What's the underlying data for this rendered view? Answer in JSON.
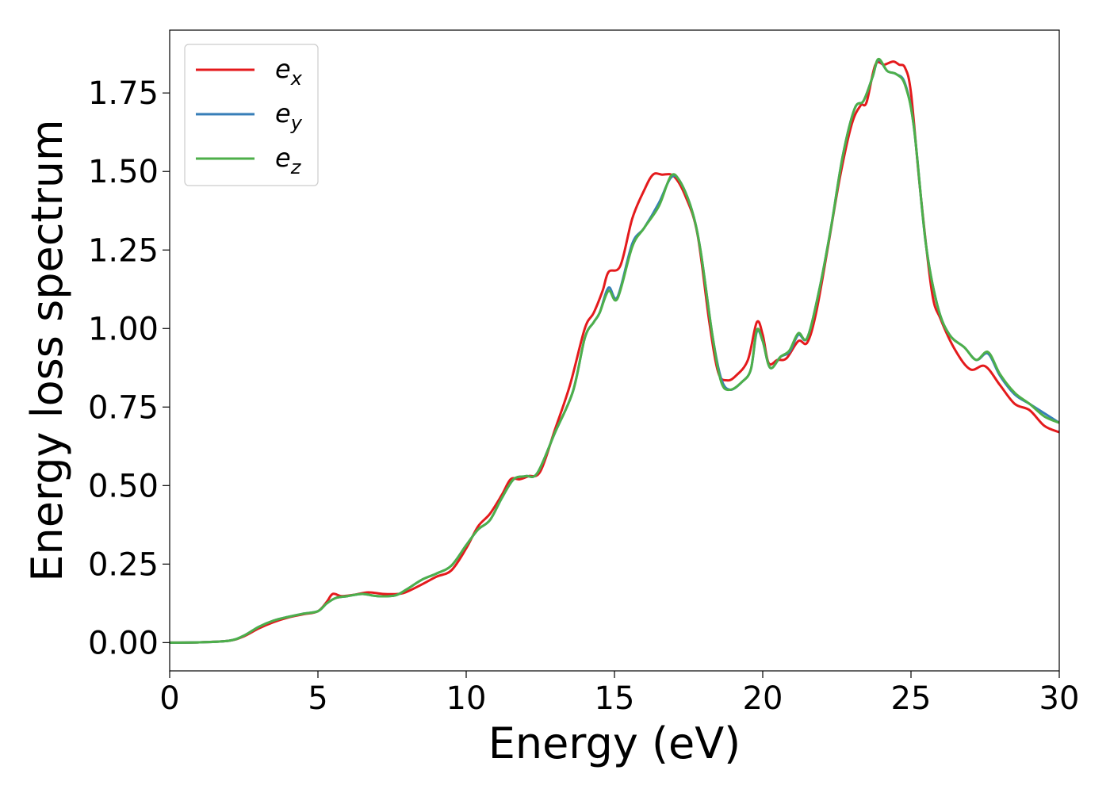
{
  "chart_data": {
    "type": "line",
    "title": "",
    "xlabel": "Energy (eV)",
    "ylabel": "Energy loss spectrum",
    "xlim": [
      0,
      30
    ],
    "ylim": [
      -0.09,
      1.95
    ],
    "xticks": [
      0,
      5,
      10,
      15,
      20,
      25,
      30
    ],
    "xtick_labels": [
      "0",
      "5",
      "10",
      "15",
      "20",
      "25",
      "30"
    ],
    "yticks": [
      0.0,
      0.25,
      0.5,
      0.75,
      1.0,
      1.25,
      1.5,
      1.75
    ],
    "ytick_labels": [
      "0.00",
      "0.25",
      "0.50",
      "0.75",
      "1.00",
      "1.25",
      "1.50",
      "1.75"
    ],
    "grid": false,
    "legend_position": "top-left",
    "series": [
      {
        "name": "e",
        "subscript": "x",
        "color": "#e41a1c",
        "points": [
          [
            0,
            0
          ],
          [
            1,
            0.001
          ],
          [
            2,
            0.006
          ],
          [
            2.5,
            0.02
          ],
          [
            3,
            0.045
          ],
          [
            3.5,
            0.065
          ],
          [
            4,
            0.08
          ],
          [
            4.5,
            0.09
          ],
          [
            5,
            0.1
          ],
          [
            5.3,
            0.13
          ],
          [
            5.5,
            0.155
          ],
          [
            5.8,
            0.148
          ],
          [
            6.2,
            0.152
          ],
          [
            6.7,
            0.16
          ],
          [
            7.2,
            0.155
          ],
          [
            7.7,
            0.155
          ],
          [
            8,
            0.162
          ],
          [
            8.5,
            0.185
          ],
          [
            9,
            0.21
          ],
          [
            9.5,
            0.23
          ],
          [
            10,
            0.3
          ],
          [
            10.4,
            0.37
          ],
          [
            10.8,
            0.41
          ],
          [
            11.2,
            0.47
          ],
          [
            11.5,
            0.52
          ],
          [
            11.8,
            0.52
          ],
          [
            12.1,
            0.53
          ],
          [
            12.5,
            0.545
          ],
          [
            13,
            0.68
          ],
          [
            13.5,
            0.82
          ],
          [
            14,
            1.0
          ],
          [
            14.3,
            1.05
          ],
          [
            14.6,
            1.12
          ],
          [
            14.8,
            1.18
          ],
          [
            15.2,
            1.2
          ],
          [
            15.6,
            1.35
          ],
          [
            16,
            1.44
          ],
          [
            16.3,
            1.49
          ],
          [
            16.6,
            1.49
          ],
          [
            17,
            1.485
          ],
          [
            17.4,
            1.42
          ],
          [
            17.8,
            1.3
          ],
          [
            18.2,
            1.02
          ],
          [
            18.5,
            0.86
          ],
          [
            18.8,
            0.835
          ],
          [
            19.1,
            0.85
          ],
          [
            19.5,
            0.9
          ],
          [
            19.8,
            1.02
          ],
          [
            20,
            0.98
          ],
          [
            20.2,
            0.89
          ],
          [
            20.5,
            0.9
          ],
          [
            20.8,
            0.905
          ],
          [
            21.2,
            0.96
          ],
          [
            21.5,
            0.955
          ],
          [
            21.8,
            1.05
          ],
          [
            22.2,
            1.26
          ],
          [
            22.6,
            1.48
          ],
          [
            23,
            1.65
          ],
          [
            23.3,
            1.71
          ],
          [
            23.5,
            1.72
          ],
          [
            23.8,
            1.84
          ],
          [
            24.1,
            1.84
          ],
          [
            24.4,
            1.85
          ],
          [
            24.6,
            1.84
          ],
          [
            24.8,
            1.83
          ],
          [
            25,
            1.75
          ],
          [
            25.3,
            1.45
          ],
          [
            25.7,
            1.12
          ],
          [
            26,
            1.03
          ],
          [
            26.5,
            0.93
          ],
          [
            27,
            0.87
          ],
          [
            27.5,
            0.88
          ],
          [
            28,
            0.82
          ],
          [
            28.5,
            0.76
          ],
          [
            29,
            0.74
          ],
          [
            29.5,
            0.69
          ],
          [
            30,
            0.67
          ]
        ]
      },
      {
        "name": "e",
        "subscript": "y",
        "color": "#377eb8",
        "points": [
          [
            0,
            0
          ],
          [
            1,
            0.001
          ],
          [
            2,
            0.006
          ],
          [
            2.5,
            0.022
          ],
          [
            3,
            0.05
          ],
          [
            3.5,
            0.07
          ],
          [
            4,
            0.082
          ],
          [
            4.5,
            0.092
          ],
          [
            5,
            0.1
          ],
          [
            5.3,
            0.125
          ],
          [
            5.6,
            0.142
          ],
          [
            6,
            0.148
          ],
          [
            6.5,
            0.155
          ],
          [
            7,
            0.148
          ],
          [
            7.6,
            0.15
          ],
          [
            8,
            0.17
          ],
          [
            8.5,
            0.2
          ],
          [
            9,
            0.22
          ],
          [
            9.5,
            0.245
          ],
          [
            10,
            0.31
          ],
          [
            10.4,
            0.36
          ],
          [
            10.8,
            0.39
          ],
          [
            11.2,
            0.46
          ],
          [
            11.6,
            0.52
          ],
          [
            12,
            0.53
          ],
          [
            12.4,
            0.54
          ],
          [
            13,
            0.67
          ],
          [
            13.6,
            0.8
          ],
          [
            14,
            0.97
          ],
          [
            14.3,
            1.02
          ],
          [
            14.5,
            1.05
          ],
          [
            14.8,
            1.13
          ],
          [
            15.1,
            1.1
          ],
          [
            15.6,
            1.27
          ],
          [
            16,
            1.32
          ],
          [
            16.5,
            1.4
          ],
          [
            16.9,
            1.48
          ],
          [
            17.2,
            1.47
          ],
          [
            17.6,
            1.38
          ],
          [
            17.9,
            1.25
          ],
          [
            18.3,
            0.98
          ],
          [
            18.6,
            0.84
          ],
          [
            18.9,
            0.805
          ],
          [
            19.3,
            0.83
          ],
          [
            19.6,
            0.87
          ],
          [
            19.8,
            0.99
          ],
          [
            20,
            0.96
          ],
          [
            20.25,
            0.875
          ],
          [
            20.6,
            0.91
          ],
          [
            20.9,
            0.925
          ],
          [
            21.2,
            0.98
          ],
          [
            21.5,
            0.97
          ],
          [
            21.9,
            1.12
          ],
          [
            22.3,
            1.32
          ],
          [
            22.7,
            1.55
          ],
          [
            23.1,
            1.7
          ],
          [
            23.4,
            1.725
          ],
          [
            23.7,
            1.8
          ],
          [
            23.9,
            1.855
          ],
          [
            24.2,
            1.82
          ],
          [
            24.5,
            1.81
          ],
          [
            24.8,
            1.78
          ],
          [
            25.1,
            1.64
          ],
          [
            25.5,
            1.27
          ],
          [
            25.9,
            1.07
          ],
          [
            26.3,
            0.98
          ],
          [
            26.8,
            0.94
          ],
          [
            27.2,
            0.9
          ],
          [
            27.6,
            0.92
          ],
          [
            28,
            0.85
          ],
          [
            28.5,
            0.79
          ],
          [
            29,
            0.76
          ],
          [
            29.5,
            0.73
          ],
          [
            30,
            0.7
          ]
        ]
      },
      {
        "name": "e",
        "subscript": "z",
        "color": "#4daf4a",
        "points": [
          [
            0,
            0
          ],
          [
            1,
            0.001
          ],
          [
            2,
            0.006
          ],
          [
            2.5,
            0.022
          ],
          [
            3,
            0.05
          ],
          [
            3.5,
            0.07
          ],
          [
            4,
            0.082
          ],
          [
            4.5,
            0.092
          ],
          [
            5,
            0.1
          ],
          [
            5.3,
            0.125
          ],
          [
            5.6,
            0.142
          ],
          [
            6,
            0.148
          ],
          [
            6.5,
            0.155
          ],
          [
            7,
            0.148
          ],
          [
            7.6,
            0.15
          ],
          [
            8,
            0.17
          ],
          [
            8.5,
            0.2
          ],
          [
            9,
            0.22
          ],
          [
            9.5,
            0.245
          ],
          [
            10,
            0.31
          ],
          [
            10.4,
            0.36
          ],
          [
            10.8,
            0.39
          ],
          [
            11.2,
            0.46
          ],
          [
            11.6,
            0.52
          ],
          [
            12,
            0.53
          ],
          [
            12.4,
            0.54
          ],
          [
            13,
            0.67
          ],
          [
            13.6,
            0.8
          ],
          [
            14,
            0.97
          ],
          [
            14.3,
            1.02
          ],
          [
            14.5,
            1.05
          ],
          [
            14.8,
            1.12
          ],
          [
            15.1,
            1.095
          ],
          [
            15.6,
            1.26
          ],
          [
            16,
            1.32
          ],
          [
            16.5,
            1.39
          ],
          [
            16.9,
            1.485
          ],
          [
            17.2,
            1.47
          ],
          [
            17.6,
            1.38
          ],
          [
            17.9,
            1.25
          ],
          [
            18.3,
            0.98
          ],
          [
            18.6,
            0.83
          ],
          [
            18.9,
            0.805
          ],
          [
            19.3,
            0.83
          ],
          [
            19.6,
            0.87
          ],
          [
            19.8,
            0.995
          ],
          [
            20,
            0.96
          ],
          [
            20.25,
            0.875
          ],
          [
            20.6,
            0.91
          ],
          [
            20.9,
            0.93
          ],
          [
            21.2,
            0.985
          ],
          [
            21.5,
            0.97
          ],
          [
            21.9,
            1.12
          ],
          [
            22.3,
            1.32
          ],
          [
            22.7,
            1.55
          ],
          [
            23.1,
            1.7
          ],
          [
            23.4,
            1.725
          ],
          [
            23.7,
            1.8
          ],
          [
            23.9,
            1.858
          ],
          [
            24.2,
            1.82
          ],
          [
            24.5,
            1.81
          ],
          [
            24.8,
            1.775
          ],
          [
            25.1,
            1.64
          ],
          [
            25.5,
            1.27
          ],
          [
            25.9,
            1.07
          ],
          [
            26.3,
            0.98
          ],
          [
            26.8,
            0.94
          ],
          [
            27.2,
            0.9
          ],
          [
            27.6,
            0.925
          ],
          [
            28,
            0.855
          ],
          [
            28.5,
            0.795
          ],
          [
            29,
            0.76
          ],
          [
            29.5,
            0.72
          ],
          [
            30,
            0.7
          ]
        ]
      }
    ]
  }
}
